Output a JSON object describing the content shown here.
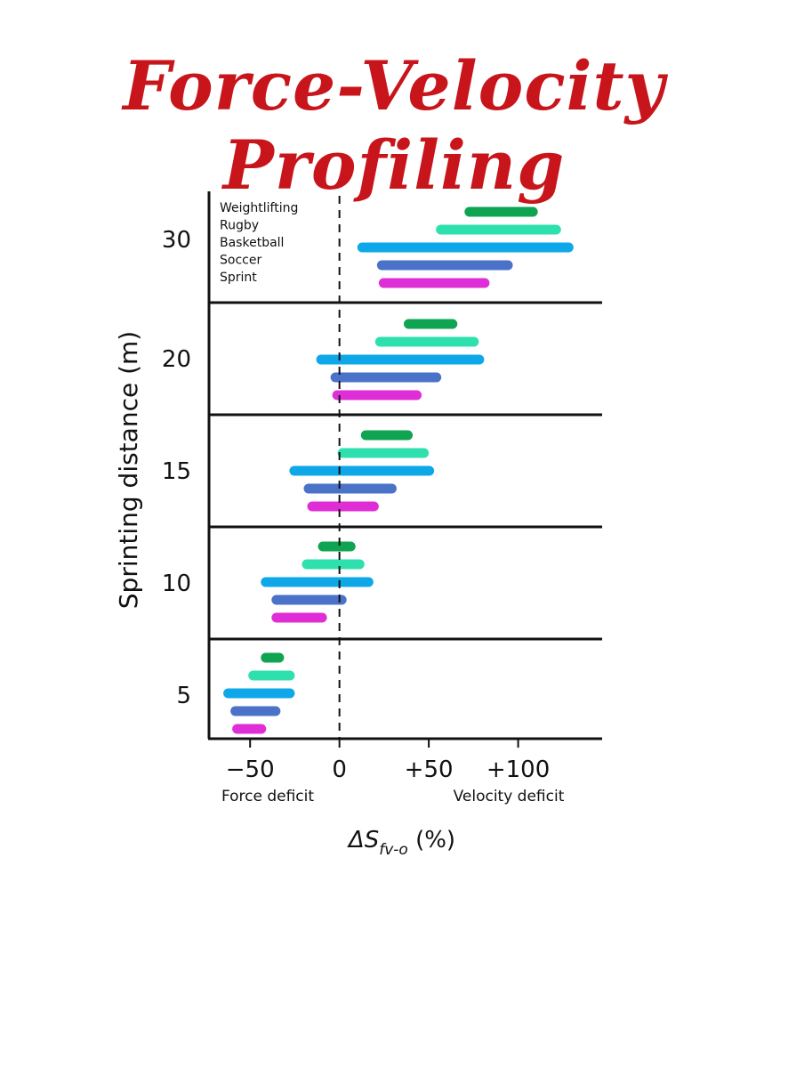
{
  "page_title": "Force-Velocity Profiling",
  "chart_data": {
    "type": "bar",
    "orientation": "horizontal-range",
    "ylabel": "Sprinting distance (m)",
    "xlabel_parts": {
      "main": "ΔS",
      "subscript": "fv-o",
      "suffix": " (%)"
    },
    "x_annotations": {
      "left": "Force deficit",
      "right": "Velocity deficit"
    },
    "xlim": [
      -73,
      147
    ],
    "x_ticks": [
      {
        "value": -50,
        "label": "−50"
      },
      {
        "value": 0,
        "label": "0"
      },
      {
        "value": 50,
        "label": "+50"
      },
      {
        "value": 100,
        "label": "+100"
      }
    ],
    "reference_line": {
      "x": 0,
      "style": "dashed"
    },
    "legend": [
      "Weightlifting",
      "Rugby",
      "Basketball",
      "Soccer",
      "Sprint"
    ],
    "colors": {
      "Weightlifting": "#0fa452",
      "Rugby": "#2de0ae",
      "Basketball": "#0ea8e8",
      "Soccer": "#4a72c9",
      "Sprint": "#e02ed6"
    },
    "categories": [
      "30",
      "20",
      "15",
      "10",
      "5"
    ],
    "series": [
      {
        "name": "Weightlifting",
        "ranges": [
          [
            70,
            111
          ],
          [
            36,
            66
          ],
          [
            12,
            41
          ],
          [
            -12,
            9
          ],
          [
            -44,
            -31
          ]
        ]
      },
      {
        "name": "Rugby",
        "ranges": [
          [
            54,
            124
          ],
          [
            20,
            78
          ],
          [
            -1,
            50
          ],
          [
            -21,
            14
          ],
          [
            -51,
            -25
          ]
        ]
      },
      {
        "name": "Basketball",
        "ranges": [
          [
            10,
            131
          ],
          [
            -13,
            81
          ],
          [
            -28,
            53
          ],
          [
            -44,
            19
          ],
          [
            -65,
            -25
          ]
        ]
      },
      {
        "name": "Soccer",
        "ranges": [
          [
            21,
            97
          ],
          [
            -5,
            57
          ],
          [
            -20,
            32
          ],
          [
            -38,
            4
          ],
          [
            -61,
            -33
          ]
        ]
      },
      {
        "name": "Sprint",
        "ranges": [
          [
            22,
            84
          ],
          [
            -4,
            46
          ],
          [
            -18,
            22
          ],
          [
            -38,
            -7
          ],
          [
            -60,
            -41
          ]
        ]
      }
    ]
  }
}
